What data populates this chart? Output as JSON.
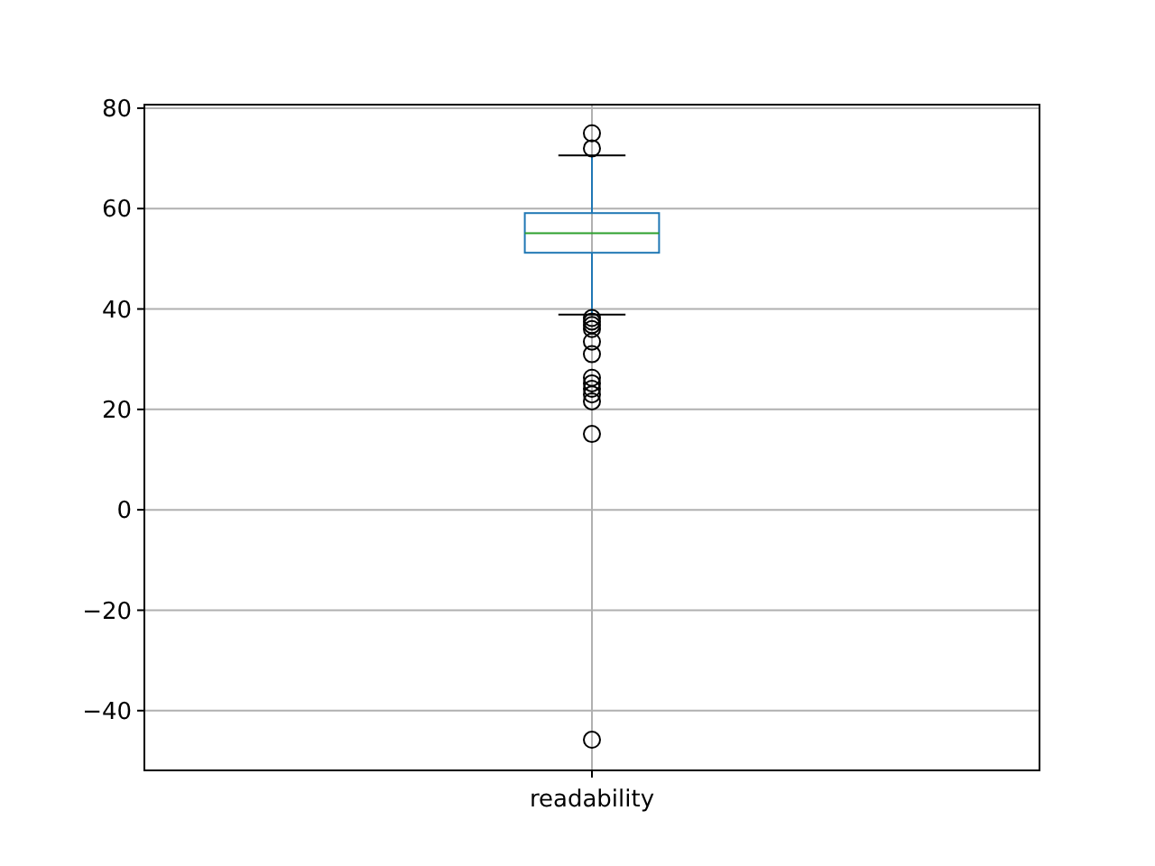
{
  "chart_data": {
    "type": "box",
    "categories": [
      "readability"
    ],
    "boxes": [
      {
        "low": 38.9,
        "q1": 51.2,
        "median": 55.1,
        "q3": 59.1,
        "high": 70.6,
        "outliers": [
          75,
          72,
          38.2,
          37.5,
          36.8,
          36,
          33.5,
          31,
          26.3,
          25.2,
          24.1,
          23,
          21.6,
          15.1,
          -45.8
        ]
      }
    ],
    "ylim": [
      -51.9,
      80.7
    ],
    "yticks": [
      -40,
      -20,
      0,
      20,
      40,
      60,
      80
    ],
    "grid": true
  }
}
